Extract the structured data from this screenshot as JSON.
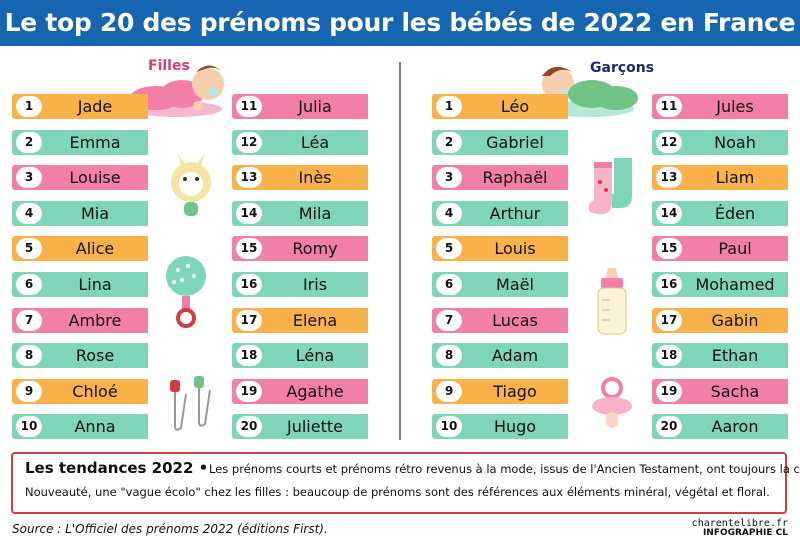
{
  "title": "Le top 20 des prénoms pour les bébés de 2022 en France",
  "colors": {
    "header": "#1565b0",
    "orange": "#f9b14a",
    "green": "#7fd5ba",
    "pink": "#f27fa8",
    "trend_border": "#d33a4a"
  },
  "girls": {
    "label": "Filles",
    "ranks": [
      {
        "rank": "1",
        "name": "Jade"
      },
      {
        "rank": "2",
        "name": "Emma"
      },
      {
        "rank": "3",
        "name": "Louise"
      },
      {
        "rank": "4",
        "name": "Mia"
      },
      {
        "rank": "5",
        "name": "Alice"
      },
      {
        "rank": "6",
        "name": "Lina"
      },
      {
        "rank": "7",
        "name": "Ambre"
      },
      {
        "rank": "8",
        "name": "Rose"
      },
      {
        "rank": "9",
        "name": "Chloé"
      },
      {
        "rank": "10",
        "name": "Anna"
      },
      {
        "rank": "11",
        "name": "Julia"
      },
      {
        "rank": "12",
        "name": "Léa"
      },
      {
        "rank": "13",
        "name": "Inès"
      },
      {
        "rank": "14",
        "name": "Mila"
      },
      {
        "rank": "15",
        "name": "Romy"
      },
      {
        "rank": "16",
        "name": "Iris"
      },
      {
        "rank": "17",
        "name": "Elena"
      },
      {
        "rank": "18",
        "name": "Léna"
      },
      {
        "rank": "19",
        "name": "Agathe"
      },
      {
        "rank": "20",
        "name": "Juliette"
      }
    ]
  },
  "boys": {
    "label": "Garçons",
    "ranks": [
      {
        "rank": "1",
        "name": "Léo"
      },
      {
        "rank": "2",
        "name": "Gabriel"
      },
      {
        "rank": "3",
        "name": "Raphaël"
      },
      {
        "rank": "4",
        "name": "Arthur"
      },
      {
        "rank": "5",
        "name": "Louis"
      },
      {
        "rank": "6",
        "name": "Maël"
      },
      {
        "rank": "7",
        "name": "Lucas"
      },
      {
        "rank": "8",
        "name": "Adam"
      },
      {
        "rank": "9",
        "name": "Tiago"
      },
      {
        "rank": "10",
        "name": "Hugo"
      },
      {
        "rank": "11",
        "name": "Jules"
      },
      {
        "rank": "12",
        "name": "Noah"
      },
      {
        "rank": "13",
        "name": "Liam"
      },
      {
        "rank": "14",
        "name": "Éden"
      },
      {
        "rank": "15",
        "name": "Paul"
      },
      {
        "rank": "16",
        "name": "Mohamed"
      },
      {
        "rank": "17",
        "name": "Gabin"
      },
      {
        "rank": "18",
        "name": "Ethan"
      },
      {
        "rank": "19",
        "name": "Sacha"
      },
      {
        "rank": "20",
        "name": "Aaron"
      }
    ]
  },
  "trends": {
    "title": "Les tendances 2022",
    "line1": "Les prénoms courts et prénoms rétro revenus à la mode, issus de l'Ancien Testament, ont toujours la cote.",
    "line2": "Nouveauté, une \"vague écolo\" chez les filles : beaucoup de prénoms sont des références aux éléments minéral, végétal et floral."
  },
  "source": "Source : L'Officiel des prénoms 2022 (éditions First).",
  "credit_site": "charentelibre.fr",
  "credit_infographic": "INFOGRAPHIE CL",
  "icons": [
    "sleeping-girl-baby-icon",
    "sleeping-boy-baby-icon",
    "rabbit-teether-icon",
    "rattle-icon",
    "safety-pins-icon",
    "socks-icon",
    "baby-bottle-icon",
    "pacifier-icon"
  ]
}
